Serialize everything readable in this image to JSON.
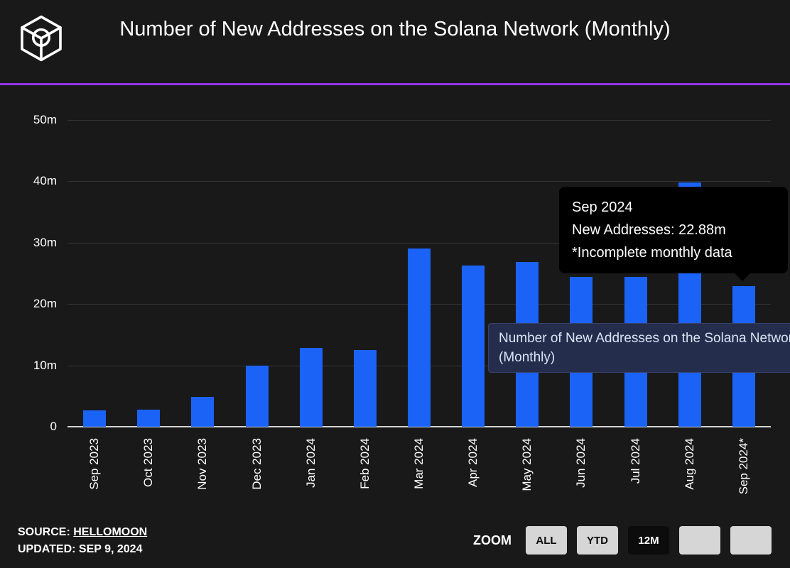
{
  "page": {
    "background": "#191919",
    "accent_line_color": "#9333ea"
  },
  "header": {
    "title": "Number of New Addresses on the Solana Network (Monthly)",
    "logo": "hellomoon-logo"
  },
  "chart_data": {
    "type": "bar",
    "title": "Number of New Addresses on the Solana Network (Monthly)",
    "series_name": "New Addresses",
    "bar_color": "#1b63f7",
    "categories": [
      "Sep 2023",
      "Oct 2023",
      "Nov 2023",
      "Dec 2023",
      "Jan 2024",
      "Feb 2024",
      "Mar 2024",
      "Apr 2024",
      "May 2024",
      "Jun 2024",
      "Jul 2024",
      "Aug 2024",
      "Sep 2024*"
    ],
    "values": [
      2.7,
      2.8,
      4.9,
      9.9,
      12.8,
      12.5,
      29,
      26.2,
      26.8,
      24.4,
      24.4,
      39.8,
      22.88
    ],
    "unit": "m",
    "yticks": [
      {
        "value": 0,
        "label": "0"
      },
      {
        "value": 10,
        "label": "10m"
      },
      {
        "value": 20,
        "label": "20m"
      },
      {
        "value": 30,
        "label": "30m"
      },
      {
        "value": 40,
        "label": "40m"
      },
      {
        "value": 50,
        "label": "50m"
      }
    ],
    "ylim": [
      0,
      55
    ],
    "grid": true,
    "note": "*Incomplete monthly data"
  },
  "tooltip": {
    "title": "Sep 2024",
    "value_line": "New Addresses: 22.88m",
    "note_line": "*Incomplete monthly data"
  },
  "series_label_box": {
    "text": "Number of New Addresses on the Solana Network (Monthly)"
  },
  "footer": {
    "source_label": "SOURCE:",
    "source_name": "HELLOMOON",
    "updated": "UPDATED: SEP 9, 2024"
  },
  "zoom": {
    "label": "ZOOM",
    "buttons": [
      {
        "label": "ALL",
        "active": false
      },
      {
        "label": "YTD",
        "active": false
      },
      {
        "label": "12M",
        "active": true
      },
      {
        "label": "",
        "active": false
      },
      {
        "label": "",
        "active": false
      }
    ]
  }
}
